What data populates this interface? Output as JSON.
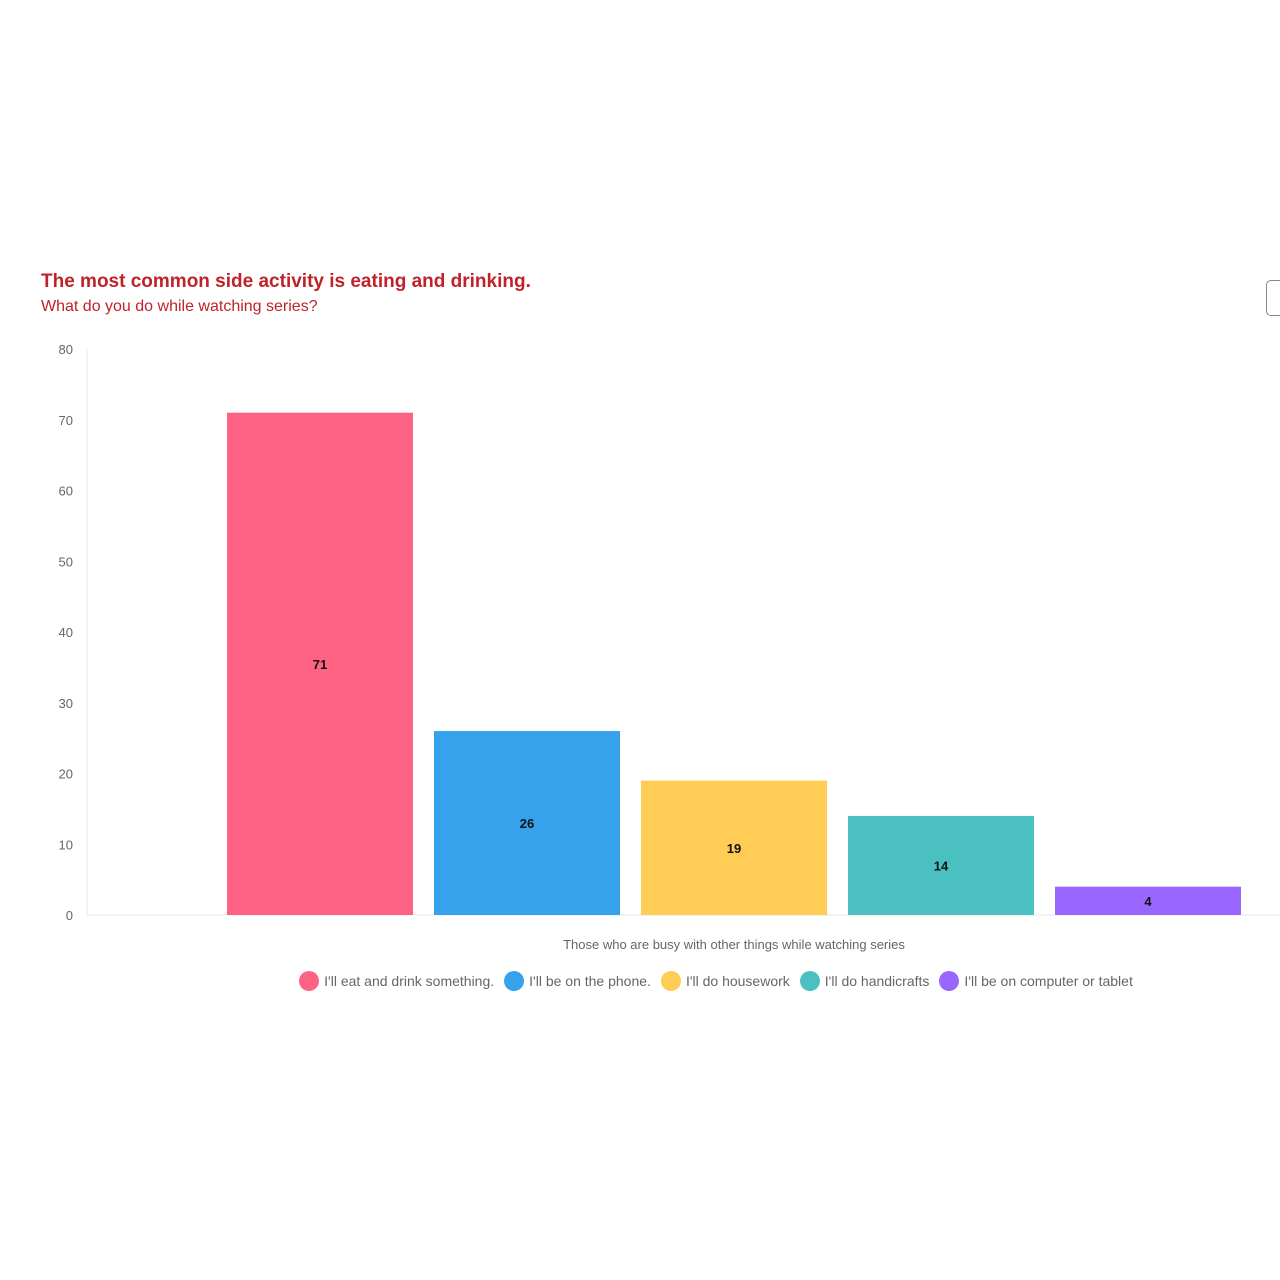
{
  "chart_data": {
    "type": "bar",
    "title": "The most common side activity is eating and drinking.",
    "subtitle": "What do you do while watching series?",
    "categories": [
      "Those who are busy with other things while watching series"
    ],
    "xlabel": "Those who are busy with other things while watching series",
    "ylim": [
      0,
      80
    ],
    "yticks": [
      0,
      10,
      20,
      30,
      40,
      50,
      60,
      70,
      80
    ],
    "grid": false,
    "legend_position": "bottom",
    "series": [
      {
        "name": "I'll eat and drink something.",
        "values": [
          71
        ],
        "color": "#ff6384"
      },
      {
        "name": "I'll be on the phone.",
        "values": [
          26
        ],
        "color": "#36a2eb"
      },
      {
        "name": "I'll do housework",
        "values": [
          19
        ],
        "color": "#ffcd56"
      },
      {
        "name": "I'll do handicrafts",
        "values": [
          14
        ],
        "color": "#4bc0c0"
      },
      {
        "name": "I'll be on computer or tablet",
        "values": [
          4
        ],
        "color": "#9966ff"
      }
    ]
  }
}
